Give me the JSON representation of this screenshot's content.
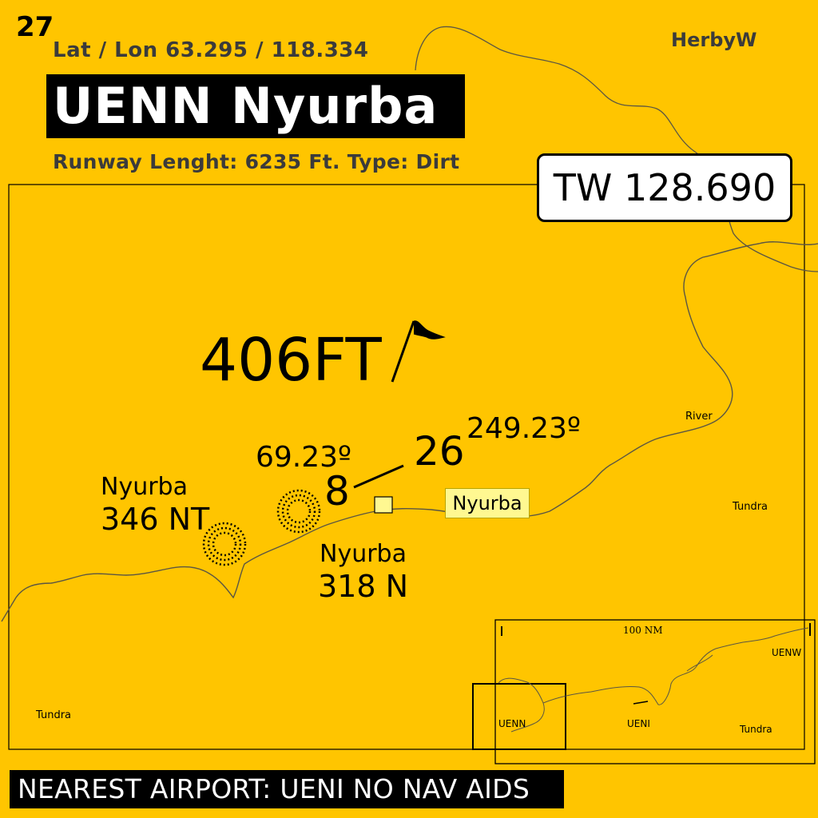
{
  "header": {
    "chart_number": "27",
    "lat_lon": "Lat / Lon 63.295 / 118.334",
    "author": "HerbyW",
    "title": "UENN Nyurba",
    "runway_info": "Runway Lenght: 6235 Ft. Type: Dirt"
  },
  "frequency_box": {
    "label": "TW 128.690"
  },
  "airport": {
    "elevation": "406FT",
    "runway_end_1": {
      "number": "8",
      "heading": "69.23º"
    },
    "runway_end_2": {
      "number": "26",
      "heading": "249.23º"
    },
    "town_label": "Nyurba"
  },
  "navaids": [
    {
      "name": "Nyurba",
      "frequency": "346 NT"
    },
    {
      "name": "Nyurba",
      "frequency": "318 N"
    }
  ],
  "terrain_labels": {
    "river": "River",
    "tundra_east": "Tundra",
    "tundra_west": "Tundra"
  },
  "inset_map": {
    "scale": "100 NM",
    "labels": {
      "uenw": "UENW",
      "uenn": "UENN",
      "ueni": "UENI",
      "tundra": "Tundra"
    }
  },
  "footer": {
    "nearest_airport": "NEAREST  AIRPORT: UENI NO NAV AIDS"
  },
  "colors": {
    "background": "#ffc500",
    "river": "#55513f",
    "town_fill": "#fff891"
  }
}
